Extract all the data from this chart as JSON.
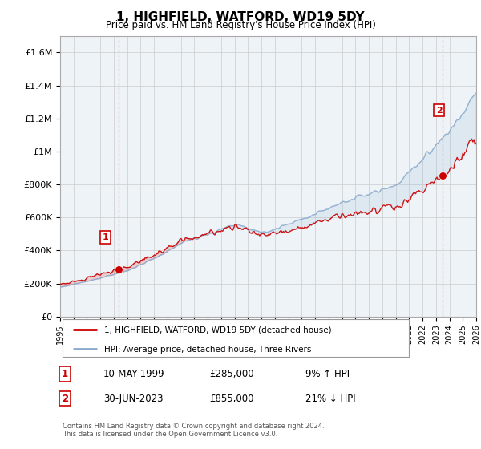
{
  "title": "1, HIGHFIELD, WATFORD, WD19 5DY",
  "subtitle": "Price paid vs. HM Land Registry's House Price Index (HPI)",
  "ylabel_ticks": [
    "£0",
    "£200K",
    "£400K",
    "£600K",
    "£800K",
    "£1M",
    "£1.2M",
    "£1.4M",
    "£1.6M"
  ],
  "ylabel_values": [
    0,
    200000,
    400000,
    600000,
    800000,
    1000000,
    1200000,
    1400000,
    1600000
  ],
  "ylim": [
    0,
    1700000
  ],
  "xmin_year": 1995,
  "xmax_year": 2026,
  "xtick_years": [
    1995,
    1996,
    1997,
    1998,
    1999,
    2000,
    2001,
    2002,
    2003,
    2004,
    2005,
    2006,
    2007,
    2008,
    2009,
    2010,
    2011,
    2012,
    2013,
    2014,
    2015,
    2016,
    2017,
    2018,
    2019,
    2020,
    2021,
    2022,
    2023,
    2024,
    2025,
    2026
  ],
  "sale1_year": 1999.36,
  "sale1_price": 285000,
  "sale1_label": "1",
  "sale1_date": "10-MAY-1999",
  "sale1_hpi_text": "9% ↑ HPI",
  "sale2_year": 2023.5,
  "sale2_price": 855000,
  "sale2_label": "2",
  "sale2_date": "30-JUN-2023",
  "sale2_hpi_text": "21% ↓ HPI",
  "line_color_sold": "#cc0000",
  "line_color_hpi": "#88aacc",
  "marker_color_sold": "#cc0000",
  "legend_line1": "1, HIGHFIELD, WATFORD, WD19 5DY (detached house)",
  "legend_line2": "HPI: Average price, detached house, Three Rivers",
  "footnote1": "Contains HM Land Registry data © Crown copyright and database right 2024.",
  "footnote2": "This data is licensed under the Open Government Licence v3.0.",
  "grid_color": "#cccccc",
  "bg_color": "#ffffff",
  "dashed_color": "#cc0000"
}
